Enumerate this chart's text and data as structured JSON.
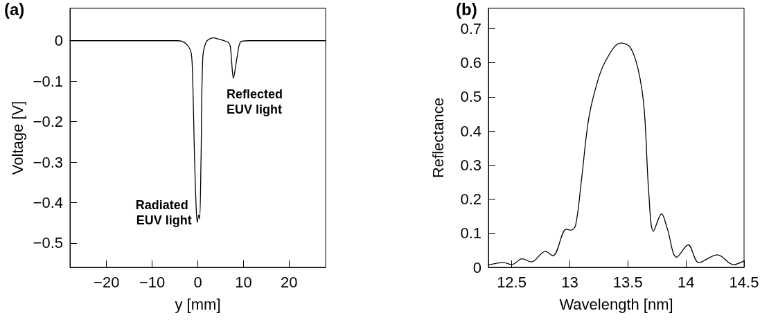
{
  "chart_data": [
    {
      "type": "line",
      "title": "(a)",
      "xlabel": "y [mm]",
      "ylabel": "Voltage [V]",
      "xlim": [
        -28,
        28
      ],
      "ylim": [
        -0.56,
        0.08
      ],
      "xticks": [
        {
          "value": -20,
          "label": "−20"
        },
        {
          "value": -10,
          "label": "−10"
        },
        0,
        10,
        20
      ],
      "yticks": [
        {
          "value": -0.5,
          "label": "−0.5"
        },
        {
          "value": -0.4,
          "label": "−0.4"
        },
        {
          "value": -0.3,
          "label": "−0.3"
        },
        {
          "value": -0.2,
          "label": "−0.2"
        },
        {
          "value": -0.1,
          "label": "−0.1"
        },
        0
      ],
      "grid": false,
      "marker": "none",
      "line_style": "solid",
      "series": [
        {
          "color": "#000000",
          "x": [
            -28,
            -10,
            -4.4,
            -3,
            -2,
            -1.4,
            -1.1,
            -0.8,
            -0.4,
            -0.1,
            0.2,
            0.4,
            0.7,
            1.1,
            1.8,
            2.5,
            3.4,
            4.5,
            5.5,
            6.65,
            7.1,
            7.4,
            7.8,
            8.2,
            8.7,
            9.4,
            11,
            20,
            28
          ],
          "values": [
            0,
            0,
            0,
            -0.004,
            -0.015,
            -0.033,
            -0.1,
            -0.25,
            -0.4,
            -0.449,
            -0.43,
            -0.44,
            -0.3,
            -0.04,
            -0.004,
            0.004,
            0.007,
            0.004,
            0.001,
            -0.004,
            -0.013,
            -0.05,
            -0.093,
            -0.07,
            -0.035,
            -0.003,
            0,
            0,
            0
          ]
        }
      ],
      "annotations": [
        {
          "text": "Radiated EUV light",
          "x": -0.1,
          "y": -0.449
        },
        {
          "text": "Reflected EUV light",
          "x": 7.8,
          "y": -0.093
        }
      ]
    },
    {
      "type": "line",
      "title": "(b)",
      "xlabel": "Wavelength [nm]",
      "ylabel": "Reflectance",
      "xlim": [
        12.3,
        14.5
      ],
      "ylim": [
        0,
        0.76
      ],
      "xticks": [
        12.5,
        13,
        13.5,
        14,
        14.5
      ],
      "yticks": [
        0,
        0.1,
        0.2,
        0.3,
        0.4,
        0.5,
        0.6,
        0.7
      ],
      "grid": false,
      "marker": "none",
      "line_style": "solid",
      "series": [
        {
          "color": "#000000",
          "x": [
            12.3,
            12.43,
            12.5,
            12.59,
            12.67,
            12.79,
            12.855,
            12.97,
            13.01,
            13.05,
            13.1,
            13.16,
            13.22,
            13.3,
            13.44,
            13.52,
            13.59,
            13.64,
            13.68,
            13.72,
            13.79,
            13.84,
            13.92,
            14.02,
            14.11,
            14.27,
            14.41,
            14.5
          ],
          "values": [
            0.007,
            0.014,
            0.008,
            0.025,
            0.016,
            0.047,
            0.034,
            0.112,
            0.109,
            0.123,
            0.254,
            0.43,
            0.522,
            0.6,
            0.658,
            0.646,
            0.579,
            0.466,
            0.219,
            0.106,
            0.157,
            0.113,
            0.03,
            0.066,
            0.014,
            0.037,
            0.008,
            0.019
          ]
        }
      ]
    }
  ]
}
